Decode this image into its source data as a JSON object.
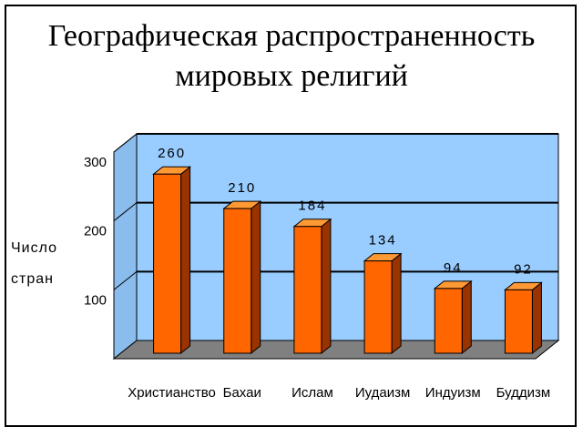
{
  "chart_data": {
    "type": "bar3d",
    "title": "Географическая распространенность мировых религий",
    "ylabel": "Число стран",
    "categories": [
      "Христианство",
      "Бахаи",
      "Ислам",
      "Иудаизм",
      "Индуизм",
      "Буддизм"
    ],
    "values": [
      260,
      210,
      184,
      134,
      94,
      92
    ],
    "color": "#ff6600",
    "ylim": [
      0,
      300
    ],
    "yticks": [
      100,
      200,
      300
    ],
    "grid": true
  }
}
